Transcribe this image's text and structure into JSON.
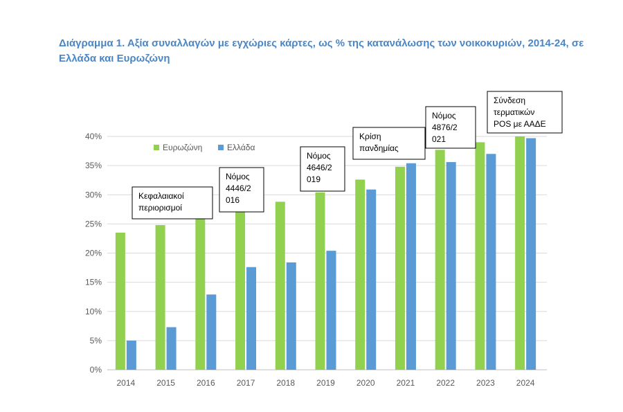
{
  "title": "Διάγραμμα 1. Αξία συναλλαγών με εγχώριες κάρτες, ως % της κατανάλωσης των νοικοκυριών, 2014-24, σε Ελλάδα και Ευρωζώνη",
  "colors": {
    "eurozone": "#92d050",
    "greece": "#5b9bd5",
    "grid": "#d9d9d9",
    "title": "#4a86c5"
  },
  "chart_data": {
    "type": "bar",
    "title": "Διάγραμμα 1. Αξία συναλλαγών με εγχώριες κάρτες, ως % της κατανάλωσης των νοικοκυριών, 2014-24, σε Ελλάδα και Ευρωζώνη",
    "categories": [
      "2014",
      "2015",
      "2016",
      "2017",
      "2018",
      "2019",
      "2020",
      "2021",
      "2022",
      "2023",
      "2024"
    ],
    "series": [
      {
        "name": "Ευρωζώνη",
        "color": "#92d050",
        "values": [
          23.5,
          24.8,
          26.0,
          27.1,
          28.8,
          30.4,
          32.6,
          34.8,
          37.7,
          39.0,
          40.0
        ]
      },
      {
        "name": "Ελλάδα",
        "color": "#5b9bd5",
        "values": [
          5.0,
          7.3,
          12.9,
          17.6,
          18.4,
          20.4,
          30.9,
          35.4,
          35.6,
          37.0,
          39.7
        ]
      }
    ],
    "yticks": [
      "0%",
      "5%",
      "10%",
      "15%",
      "20%",
      "25%",
      "30%",
      "35%",
      "40%"
    ],
    "ylim": [
      0,
      40
    ],
    "ytick_step": 5,
    "xlabel": "",
    "ylabel": "",
    "grid": true,
    "legend": {
      "position": "top-left",
      "entries": [
        "Ευρωζώνη",
        "Ελλάδα"
      ]
    },
    "annotations": [
      {
        "category": "2015",
        "lines": [
          "Κεφαλαιακοί",
          "περιορισμοί"
        ]
      },
      {
        "category": "2017",
        "lines": [
          "Νόμος",
          "4446/2",
          "016"
        ]
      },
      {
        "category": "2019",
        "lines": [
          "Νόμος",
          "4646/2",
          "019"
        ]
      },
      {
        "category": "2020",
        "lines": [
          "Κρίση",
          "πανδημίας"
        ]
      },
      {
        "category": "2022",
        "lines": [
          "Νόμος",
          "4876/2",
          "021"
        ]
      },
      {
        "category": "2024",
        "lines": [
          "Σύνδεση",
          "τερματικών",
          "POS με ΑΑΔΕ"
        ]
      }
    ]
  }
}
